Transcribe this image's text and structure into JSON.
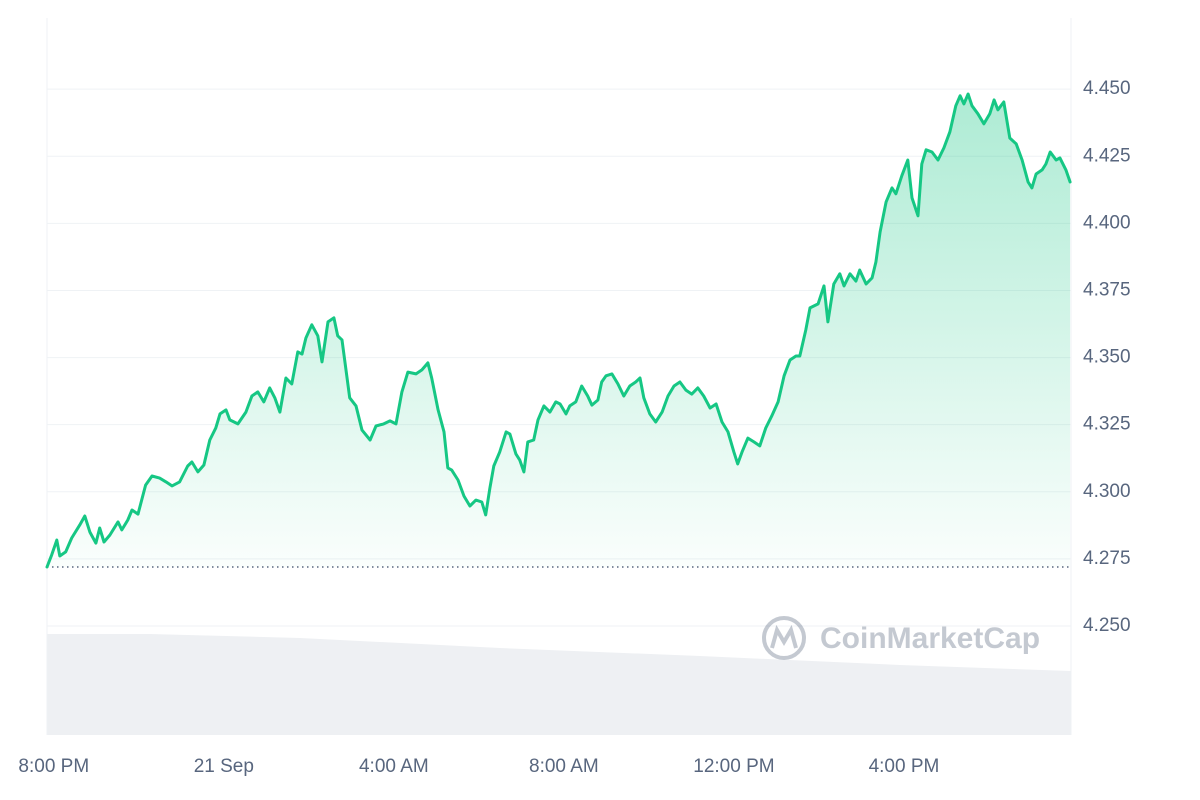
{
  "chart_data": {
    "type": "line",
    "watermark": "CoinMarketCap",
    "color": "#16c784",
    "grid": true,
    "baseline": 4.272,
    "xlim": [
      -0.16,
      23.93
    ],
    "ylim": [
      4.2094,
      4.4765
    ],
    "xticks": [
      {
        "value": 0,
        "label": "8:00 PM"
      },
      {
        "value": 4,
        "label": "21 Sep"
      },
      {
        "value": 8,
        "label": "4:00 AM"
      },
      {
        "value": 12,
        "label": "8:00 AM"
      },
      {
        "value": 16,
        "label": "12:00 PM"
      },
      {
        "value": 20,
        "label": "4:00 PM"
      }
    ],
    "yticks": [
      {
        "value": 4.25,
        "label": "4.250"
      },
      {
        "value": 4.275,
        "label": "4.275"
      },
      {
        "value": 4.3,
        "label": "4.300"
      },
      {
        "value": 4.325,
        "label": "4.325"
      },
      {
        "value": 4.35,
        "label": "4.350"
      },
      {
        "value": 4.375,
        "label": "4.375"
      },
      {
        "value": 4.4,
        "label": "4.400"
      },
      {
        "value": 4.425,
        "label": "4.425"
      },
      {
        "value": 4.45,
        "label": "4.450"
      }
    ],
    "x": [
      -0.16,
      -0.05,
      0.07,
      0.14,
      0.28,
      0.42,
      0.61,
      0.73,
      0.85,
      0.99,
      1.08,
      1.18,
      1.32,
      1.51,
      1.6,
      1.74,
      1.84,
      1.98,
      2.16,
      2.31,
      2.49,
      2.64,
      2.78,
      2.96,
      3.15,
      3.25,
      3.39,
      3.53,
      3.67,
      3.81,
      3.91,
      4.05,
      4.14,
      4.33,
      4.52,
      4.66,
      4.8,
      4.94,
      5.08,
      5.2,
      5.32,
      5.46,
      5.6,
      5.74,
      5.84,
      5.93,
      6.07,
      6.21,
      6.31,
      6.45,
      6.59,
      6.68,
      6.78,
      6.96,
      7.11,
      7.25,
      7.44,
      7.58,
      7.76,
      7.91,
      8.05,
      8.19,
      8.33,
      8.52,
      8.66,
      8.8,
      8.89,
      9.04,
      9.18,
      9.27,
      9.36,
      9.51,
      9.65,
      9.79,
      9.93,
      10.07,
      10.16,
      10.26,
      10.35,
      10.49,
      10.64,
      10.73,
      10.87,
      10.96,
      11.06,
      11.15,
      11.29,
      11.39,
      11.53,
      11.67,
      11.81,
      11.91,
      12.05,
      12.14,
      12.28,
      12.42,
      12.56,
      12.66,
      12.8,
      12.89,
      12.99,
      13.13,
      13.27,
      13.41,
      13.55,
      13.69,
      13.79,
      13.88,
      14.02,
      14.16,
      14.31,
      14.45,
      14.59,
      14.73,
      14.87,
      15.01,
      15.15,
      15.29,
      15.44,
      15.58,
      15.72,
      15.86,
      16.0,
      16.09,
      16.19,
      16.33,
      16.47,
      16.61,
      16.75,
      16.89,
      17.04,
      17.18,
      17.32,
      17.46,
      17.55,
      17.69,
      17.79,
      17.88,
      17.98,
      18.12,
      18.21,
      18.35,
      18.49,
      18.59,
      18.73,
      18.87,
      18.96,
      19.11,
      19.25,
      19.34,
      19.44,
      19.58,
      19.72,
      19.81,
      19.95,
      20.09,
      20.19,
      20.33,
      20.42,
      20.52,
      20.66,
      20.8,
      20.94,
      21.08,
      21.22,
      21.32,
      21.41,
      21.51,
      21.6,
      21.74,
      21.88,
      22.02,
      22.12,
      22.21,
      22.35,
      22.49,
      22.64,
      22.78,
      22.92,
      23.01,
      23.11,
      23.25,
      23.34,
      23.44,
      23.58,
      23.67,
      23.81,
      23.91
    ],
    "values": [
      4.272,
      4.2765,
      4.282,
      4.2761,
      4.2776,
      4.2828,
      4.2876,
      4.291,
      4.285,
      4.2809,
      4.2865,
      4.2813,
      4.2839,
      4.2888,
      4.2858,
      4.2895,
      4.2932,
      4.2917,
      4.3025,
      4.3059,
      4.3051,
      4.3037,
      4.3022,
      4.3037,
      4.3096,
      4.3111,
      4.3074,
      4.31,
      4.3193,
      4.3238,
      4.329,
      4.3305,
      4.3268,
      4.3253,
      4.3297,
      4.3357,
      4.3372,
      4.3335,
      4.3387,
      4.335,
      4.3297,
      4.3424,
      4.3402,
      4.3521,
      4.3513,
      4.3573,
      4.3622,
      4.3581,
      4.3484,
      4.3633,
      4.3648,
      4.3581,
      4.3566,
      4.335,
      4.332,
      4.323,
      4.3193,
      4.3245,
      4.3253,
      4.3264,
      4.3253,
      4.3372,
      4.3446,
      4.3439,
      4.3454,
      4.348,
      4.3424,
      4.3305,
      4.3223,
      4.3089,
      4.3081,
      4.3044,
      4.2984,
      4.2947,
      4.2969,
      4.2962,
      4.2914,
      4.3014,
      4.3096,
      4.3148,
      4.3223,
      4.3215,
      4.3141,
      4.3119,
      4.3074,
      4.3186,
      4.3193,
      4.3268,
      4.332,
      4.3297,
      4.3335,
      4.3327,
      4.329,
      4.332,
      4.3335,
      4.3394,
      4.3357,
      4.3323,
      4.3342,
      4.3409,
      4.3432,
      4.3439,
      4.3402,
      4.3357,
      4.3394,
      4.3409,
      4.3424,
      4.335,
      4.329,
      4.326,
      4.3297,
      4.3357,
      4.3394,
      4.3409,
      4.3379,
      4.3364,
      4.3387,
      4.3357,
      4.3312,
      4.3327,
      4.326,
      4.3223,
      4.3148,
      4.3104,
      4.3148,
      4.32,
      4.3186,
      4.3171,
      4.3238,
      4.3282,
      4.3335,
      4.3432,
      4.3491,
      4.3506,
      4.3506,
      4.3603,
      4.3685,
      4.3692,
      4.37,
      4.3767,
      4.3633,
      4.3774,
      4.3812,
      4.3767,
      4.3812,
      4.3785,
      4.3826,
      4.3774,
      4.3797,
      4.3856,
      4.3968,
      4.408,
      4.4132,
      4.411,
      4.4177,
      4.4236,
      4.4095,
      4.4028,
      4.4221,
      4.4274,
      4.4266,
      4.4236,
      4.4281,
      4.4341,
      4.4438,
      4.4475,
      4.4445,
      4.4482,
      4.4438,
      4.4408,
      4.4371,
      4.4408,
      4.446,
      4.4423,
      4.4452,
      4.4318,
      4.4296,
      4.4236,
      4.4154,
      4.4132,
      4.4184,
      4.4199,
      4.4221,
      4.4266,
      4.4236,
      4.4244,
      4.4199,
      4.4154
    ]
  }
}
